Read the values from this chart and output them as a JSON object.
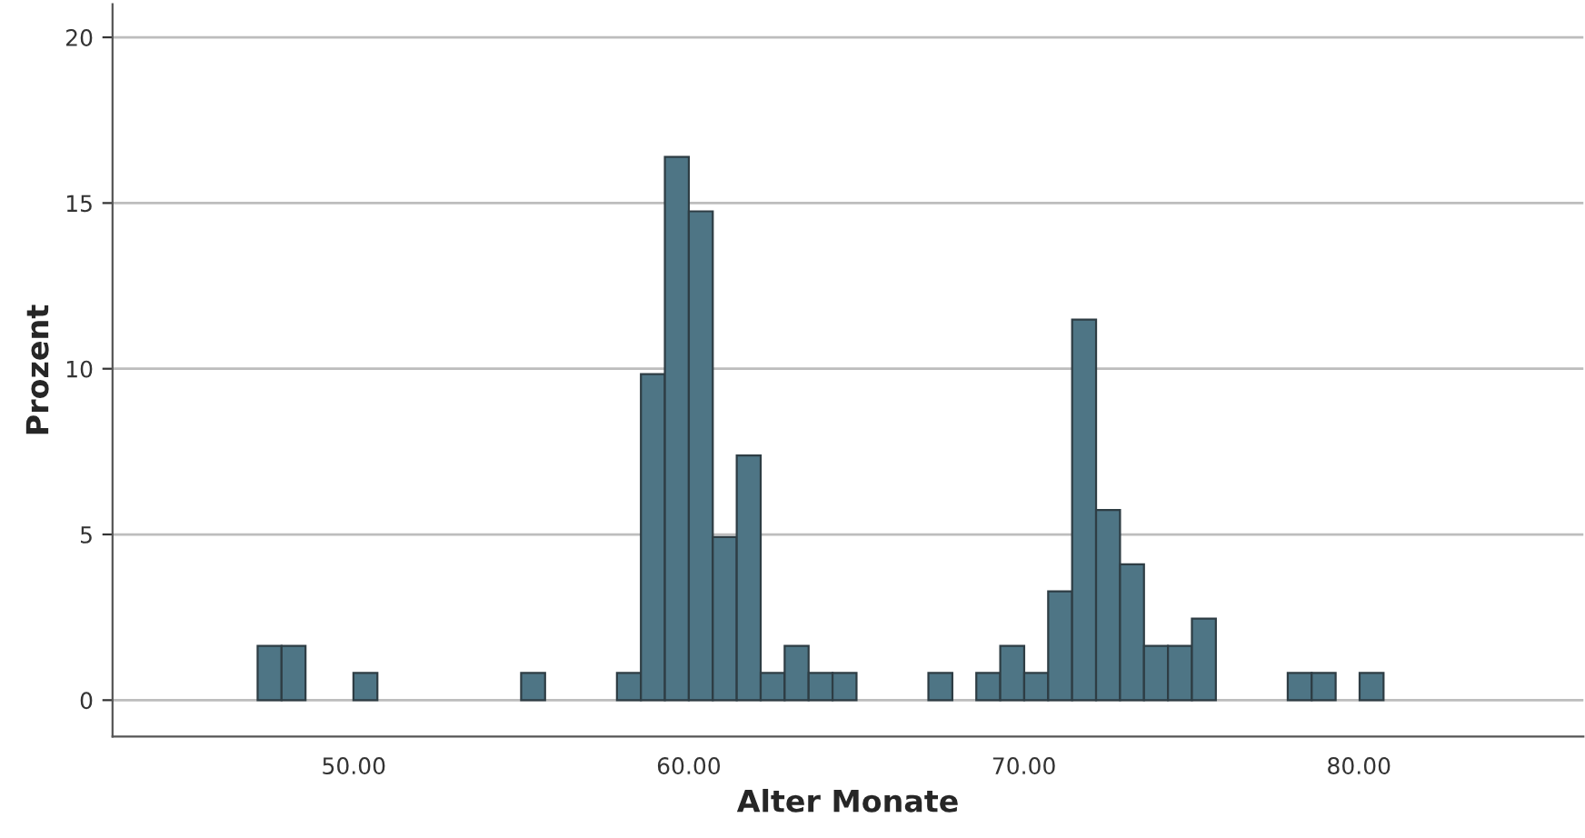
{
  "chart_data": {
    "type": "histogram",
    "xlabel": "Alter Monate",
    "ylabel": "Prozent",
    "bins": [
      47.13,
      47.845,
      48.56,
      49.275,
      49.99,
      50.705,
      51.42,
      52.135,
      52.85,
      53.565,
      54.28,
      54.995,
      55.71,
      56.425,
      57.14,
      57.855,
      58.57,
      59.285,
      60.0,
      60.715,
      61.43,
      62.145,
      62.86,
      63.575,
      64.29,
      65.005,
      65.72,
      66.435,
      67.15,
      67.865,
      68.58,
      69.295,
      70.01,
      70.725,
      71.44,
      72.155,
      72.87,
      73.585,
      74.3,
      75.015,
      75.73,
      76.445,
      77.16,
      77.875,
      78.59,
      79.305,
      80.02,
      80.735
    ],
    "values": [
      1.64,
      1.64,
      0,
      0,
      0.82,
      0,
      0,
      0,
      0,
      0,
      0,
      0.82,
      0,
      0,
      0,
      0.82,
      9.84,
      16.39,
      14.75,
      4.92,
      7.38,
      0.82,
      1.64,
      0.82,
      0.82,
      0,
      0,
      0,
      0.82,
      0,
      0.82,
      1.64,
      0.82,
      3.28,
      11.48,
      5.74,
      4.1,
      1.64,
      1.64,
      2.46,
      0,
      0,
      0,
      0.82,
      0.82,
      0,
      0.82
    ],
    "color": "#4e7585",
    "xlim": [
      42.8,
      86.7
    ],
    "ylim": [
      -1.1,
      21
    ],
    "xticks": [
      {
        "value": 50,
        "label": "50.00"
      },
      {
        "value": 60,
        "label": "60.00"
      },
      {
        "value": 70,
        "label": "70.00"
      },
      {
        "value": 80,
        "label": "80.00"
      }
    ],
    "yticks": [
      0,
      5,
      10,
      15,
      20
    ],
    "grid": "y"
  }
}
